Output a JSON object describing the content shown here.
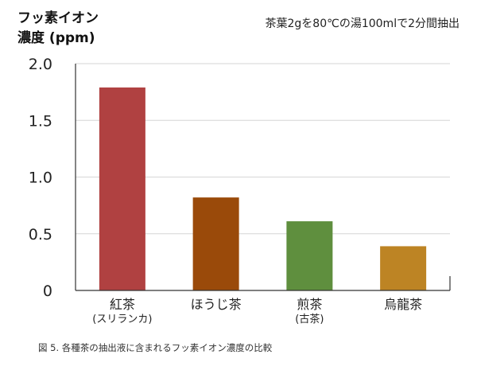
{
  "chart_data": {
    "type": "bar",
    "ylabel_lines": [
      "フッ素イオン",
      "濃度 (ppm)"
    ],
    "note": "茶葉2gを80℃の湯100mlで2分間抽出",
    "categories": [
      {
        "label": "紅茶",
        "sublabel": "(スリランカ)"
      },
      {
        "label": "ほうじ茶",
        "sublabel": ""
      },
      {
        "label": "煎茶",
        "sublabel": "(古茶)"
      },
      {
        "label": "烏龍茶",
        "sublabel": ""
      }
    ],
    "values": [
      1.79,
      0.82,
      0.61,
      0.39
    ],
    "ylim": [
      0,
      2.0
    ],
    "yticks": [
      "0",
      "0.5",
      "1.0",
      "1.5",
      "2.0"
    ],
    "grid": true,
    "caption": "図 5. 各種茶の抽出液に含まれるフッ素イオン濃度の比較",
    "colors": {
      "bars": [
        "#b04141",
        "#9a4a0a",
        "#5f8f3e",
        "#bd8424"
      ],
      "grid": "#d6d6d6",
      "axis": "#333333"
    }
  }
}
